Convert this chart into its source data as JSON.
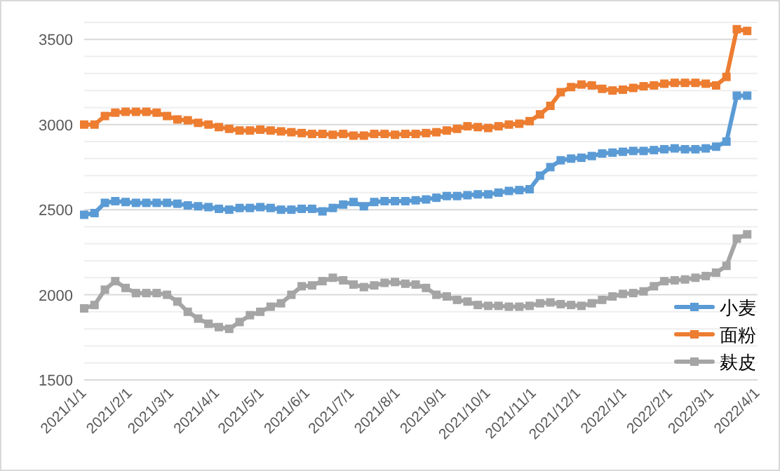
{
  "chart_data": {
    "type": "line",
    "x": [
      "2021-01-01",
      "2021-01-08",
      "2021-01-15",
      "2021-01-22",
      "2021-01-29",
      "2021-02-05",
      "2021-02-12",
      "2021-02-19",
      "2021-02-26",
      "2021-03-05",
      "2021-03-12",
      "2021-03-19",
      "2021-03-26",
      "2021-04-02",
      "2021-04-09",
      "2021-04-16",
      "2021-04-23",
      "2021-04-30",
      "2021-05-07",
      "2021-05-14",
      "2021-05-21",
      "2021-05-28",
      "2021-06-04",
      "2021-06-11",
      "2021-06-18",
      "2021-06-25",
      "2021-07-02",
      "2021-07-09",
      "2021-07-16",
      "2021-07-23",
      "2021-07-30",
      "2021-08-06",
      "2021-08-13",
      "2021-08-20",
      "2021-08-27",
      "2021-09-03",
      "2021-09-10",
      "2021-09-17",
      "2021-09-24",
      "2021-10-01",
      "2021-10-08",
      "2021-10-15",
      "2021-10-22",
      "2021-10-29",
      "2021-11-05",
      "2021-11-12",
      "2021-11-19",
      "2021-11-26",
      "2021-12-03",
      "2021-12-10",
      "2021-12-17",
      "2021-12-24",
      "2021-12-31",
      "2022-01-07",
      "2022-01-14",
      "2022-01-21",
      "2022-01-28",
      "2022-02-04",
      "2022-02-11",
      "2022-02-18",
      "2022-02-25",
      "2022-03-04",
      "2022-03-11",
      "2022-03-18",
      "2022-03-25"
    ],
    "series": [
      {
        "name": "小麦",
        "color": "#5b9bd5",
        "values": [
          2470,
          2480,
          2540,
          2550,
          2545,
          2540,
          2540,
          2540,
          2540,
          2535,
          2525,
          2520,
          2515,
          2505,
          2500,
          2510,
          2510,
          2515,
          2510,
          2500,
          2500,
          2505,
          2505,
          2490,
          2510,
          2530,
          2545,
          2520,
          2545,
          2550,
          2550,
          2550,
          2555,
          2560,
          2570,
          2580,
          2580,
          2585,
          2590,
          2590,
          2600,
          2610,
          2615,
          2620,
          2700,
          2750,
          2790,
          2800,
          2805,
          2815,
          2830,
          2835,
          2840,
          2845,
          2845,
          2850,
          2855,
          2860,
          2855,
          2855,
          2860,
          2870,
          2900,
          3170,
          3170
        ]
      },
      {
        "name": "面粉",
        "color": "#ed7d31",
        "values": [
          3000,
          3000,
          3050,
          3070,
          3075,
          3075,
          3075,
          3070,
          3050,
          3030,
          3025,
          3010,
          3000,
          2985,
          2975,
          2965,
          2965,
          2970,
          2965,
          2960,
          2955,
          2950,
          2945,
          2945,
          2940,
          2945,
          2935,
          2935,
          2945,
          2945,
          2940,
          2945,
          2945,
          2950,
          2955,
          2965,
          2975,
          2990,
          2985,
          2980,
          2990,
          3000,
          3005,
          3020,
          3060,
          3110,
          3190,
          3220,
          3235,
          3230,
          3210,
          3200,
          3205,
          3215,
          3225,
          3230,
          3240,
          3245,
          3245,
          3245,
          3240,
          3230,
          3280,
          3560,
          3550
        ]
      },
      {
        "name": "麸皮",
        "color": "#a5a5a5",
        "values": [
          1920,
          1940,
          2030,
          2080,
          2040,
          2010,
          2010,
          2010,
          2000,
          1960,
          1900,
          1860,
          1830,
          1810,
          1800,
          1840,
          1880,
          1900,
          1930,
          1950,
          2000,
          2050,
          2055,
          2080,
          2100,
          2085,
          2060,
          2045,
          2055,
          2070,
          2075,
          2065,
          2060,
          2040,
          2000,
          1990,
          1970,
          1960,
          1940,
          1935,
          1935,
          1930,
          1930,
          1935,
          1950,
          1955,
          1945,
          1940,
          1935,
          1950,
          1970,
          1990,
          2005,
          2010,
          2020,
          2050,
          2080,
          2085,
          2090,
          2100,
          2110,
          2130,
          2170,
          2330,
          2355
        ]
      }
    ],
    "xlim": [
      "2021-01-01",
      "2022-04-01"
    ],
    "xticks": [
      {
        "value": "2021-01-01",
        "label": "2021/1/1"
      },
      {
        "value": "2021-02-01",
        "label": "2021/2/1"
      },
      {
        "value": "2021-03-01",
        "label": "2021/3/1"
      },
      {
        "value": "2021-04-01",
        "label": "2021/4/1"
      },
      {
        "value": "2021-05-01",
        "label": "2021/5/1"
      },
      {
        "value": "2021-06-01",
        "label": "2021/6/1"
      },
      {
        "value": "2021-07-01",
        "label": "2021/7/1"
      },
      {
        "value": "2021-08-01",
        "label": "2021/8/1"
      },
      {
        "value": "2021-09-01",
        "label": "2021/9/1"
      },
      {
        "value": "2021-10-01",
        "label": "2021/10/1"
      },
      {
        "value": "2021-11-01",
        "label": "2021/11/1"
      },
      {
        "value": "2021-12-01",
        "label": "2021/12/1"
      },
      {
        "value": "2022-01-01",
        "label": "2022/1/1"
      },
      {
        "value": "2022-02-01",
        "label": "2022/2/1"
      },
      {
        "value": "2022-03-01",
        "label": "2022/3/1"
      },
      {
        "value": "2022-04-01",
        "label": "2022/4/1"
      }
    ],
    "ylim": [
      1500,
      3600
    ],
    "yticks": [
      1500,
      {
        "value": 1600,
        "label": null
      },
      {
        "value": 1700,
        "label": null
      },
      {
        "value": 1800,
        "label": null
      },
      {
        "value": 1900,
        "label": null
      },
      2000,
      {
        "value": 2100,
        "label": null
      },
      {
        "value": 2200,
        "label": null
      },
      {
        "value": 2300,
        "label": null
      },
      {
        "value": 2400,
        "label": null
      },
      2500,
      {
        "value": 2600,
        "label": null
      },
      {
        "value": 2700,
        "label": null
      },
      {
        "value": 2800,
        "label": null
      },
      {
        "value": 2900,
        "label": null
      },
      3000,
      {
        "value": 3100,
        "label": null
      },
      {
        "value": 3200,
        "label": null
      },
      {
        "value": 3300,
        "label": null
      },
      {
        "value": 3400,
        "label": null
      },
      3500,
      {
        "value": 3600,
        "label": null
      }
    ],
    "grid": "y",
    "legend": "bottom right",
    "marker": "square",
    "line_style": "solid"
  }
}
